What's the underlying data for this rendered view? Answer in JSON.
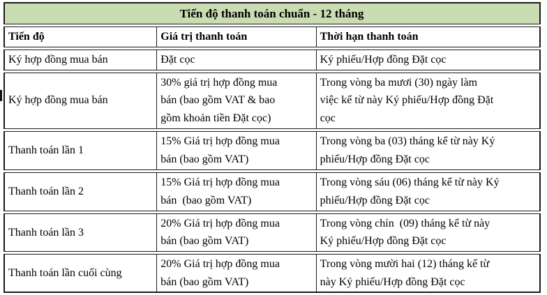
{
  "colors": {
    "header_bg": "#c9dcb2",
    "border_col": "#1a1a1a"
  },
  "table": {
    "title": "Tiến độ thanh toán chuẩn - 12 tháng",
    "headers": {
      "stage": "Tiến độ",
      "value": "Giá trị thanh toán",
      "deadline": "Thời hạn thanh toán"
    },
    "rows": [
      {
        "stage": "Ký hợp đồng mua bán",
        "value": "Đặt cọc",
        "deadline": "Ký phiếu/Hợp đồng Đặt cọc"
      },
      {
        "stage": "Ký hợp đồng mua bán",
        "value": "30% giá trị hợp đồng mua\nbán (bao gồm VAT & bao\ngồm khoản tiền Đặt cọc)",
        "deadline": "Trong vòng ba mươi (30) ngày làm\nviệc kể từ này Ký phiếu/Hợp đồng Đặt\ncọc"
      },
      {
        "stage": "Thanh toán lần 1",
        "value": "15% Giá trị hợp đồng mua\nbán (bao gồm VAT)",
        "deadline": "Trong vòng ba (03) tháng kể từ này Ký\nphiếu/Hợp đồng Đặt cọc"
      },
      {
        "stage": "Thanh toán lần 2",
        "value": "15% Giá trị hợp đồng mua\nbán  (bao gồm VAT)",
        "deadline": "Trong vòng sáu (06) tháng kể từ này Ký\nphiếu/Hợp đồng Đặt cọc"
      },
      {
        "stage": "Thanh toán lần 3",
        "value": "20% Giá trị hợp đồng mua\nbán (bao gồm VAT)",
        "deadline": "Trong vòng chín  (09) tháng kể từ này\nKý phiếu/Hợp đồng Đặt cọc"
      },
      {
        "stage": "Thanh toán lần cuối cùng",
        "value": "20% Giá trị hợp đồng mua\nbán (bao gồm VAT)",
        "deadline": "Trong vòng mười hai (12) tháng kể từ\nnày Ký phiếu/Hợp đồng Đặt cọc"
      }
    ]
  }
}
